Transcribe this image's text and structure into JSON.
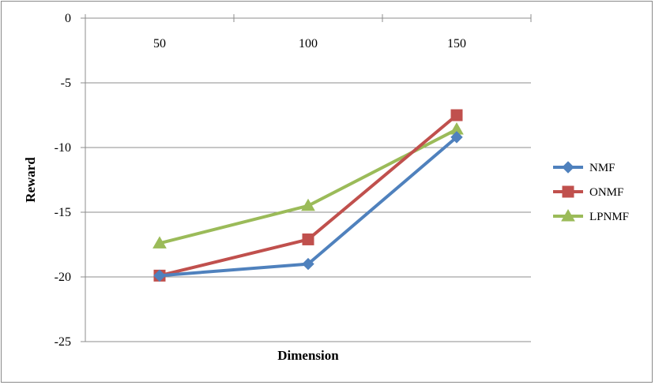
{
  "chart_data": {
    "type": "line",
    "xlabel": "Dimension",
    "ylabel": "Reward",
    "categories": [
      "50",
      "100",
      "150"
    ],
    "ylim": [
      -25,
      0
    ],
    "yticks": [
      0,
      -5,
      -10,
      -15,
      -20,
      -25
    ],
    "ytick_labels": [
      "0",
      "-5",
      "-10",
      "-15",
      "-20",
      "-25"
    ],
    "x_axis_position": "top",
    "grid": true,
    "legend_position": "right",
    "series": [
      {
        "name": "NMF",
        "values": [
          -19.9,
          -19.0,
          -9.2
        ],
        "color": "#4f81bd",
        "marker": "diamond"
      },
      {
        "name": "ONMF",
        "values": [
          -19.9,
          -17.1,
          -7.5
        ],
        "color": "#c0504d",
        "marker": "square"
      },
      {
        "name": "LPNMF",
        "values": [
          -17.4,
          -14.5,
          -8.6
        ],
        "color": "#9bbb59",
        "marker": "triangle"
      }
    ]
  }
}
